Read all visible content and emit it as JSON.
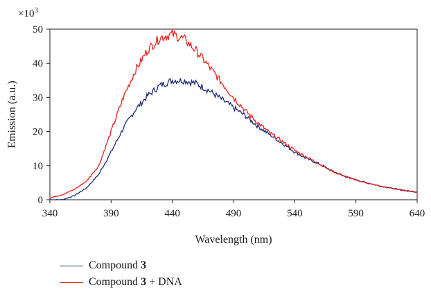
{
  "chart_data": {
    "type": "line",
    "xlabel": "Wavelength (nm)",
    "ylabel": "Emission (a.u.)",
    "y_multiplier": "×10",
    "y_multiplier_exp": "3",
    "xlim": [
      340,
      640
    ],
    "ylim": [
      0,
      50
    ],
    "x_ticks": [
      340,
      390,
      440,
      490,
      540,
      590,
      640
    ],
    "y_ticks": [
      0,
      10,
      20,
      30,
      40,
      50
    ],
    "grid": false,
    "legend_position": "bottom-left",
    "series": [
      {
        "name": "Compound 3",
        "name_prefix": "Compound ",
        "name_bold": "3",
        "name_suffix": "",
        "color": "#1f2a78",
        "x": [
          340,
          350,
          360,
          370,
          380,
          390,
          400,
          410,
          420,
          430,
          440,
          450,
          460,
          470,
          480,
          490,
          500,
          510,
          520,
          530,
          540,
          550,
          560,
          570,
          580,
          590,
          600,
          610,
          620,
          630,
          640
        ],
        "y": [
          0,
          0,
          1.2,
          3.5,
          7.5,
          14,
          21,
          26.5,
          30.5,
          33.5,
          35,
          35,
          34,
          32,
          29.5,
          27,
          24.5,
          21.5,
          19,
          16.5,
          14,
          12,
          10.5,
          8.5,
          7,
          5.8,
          4.9,
          4,
          3.3,
          2.7,
          2.3
        ]
      },
      {
        "name": "Compound 3 + DNA",
        "name_prefix": "Compound ",
        "name_bold": "3",
        "name_suffix": " + DNA",
        "color": "#e8201a",
        "x": [
          340,
          350,
          360,
          370,
          380,
          390,
          400,
          410,
          420,
          430,
          440,
          450,
          460,
          470,
          480,
          490,
          500,
          510,
          520,
          530,
          540,
          550,
          560,
          570,
          580,
          590,
          600,
          610,
          620,
          630,
          640
        ],
        "y": [
          0.5,
          1.5,
          3,
          5.5,
          10,
          20,
          30,
          38,
          44,
          47.5,
          48.5,
          47,
          43.5,
          39,
          34.5,
          30,
          26,
          22.5,
          19.5,
          17,
          14.5,
          12.5,
          10.5,
          8.5,
          7,
          5.8,
          4.8,
          4,
          3.3,
          2.7,
          2.2
        ]
      }
    ]
  }
}
